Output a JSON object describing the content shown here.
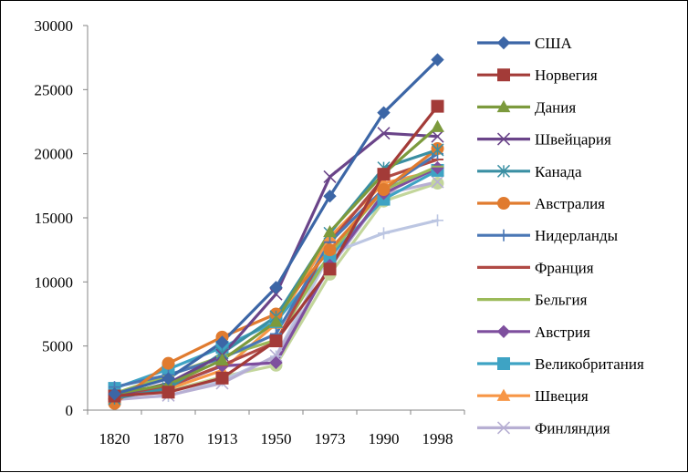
{
  "chart_data": {
    "type": "line",
    "categories": [
      "1820",
      "1870",
      "1913",
      "1950",
      "1973",
      "1990",
      "1998"
    ],
    "ylim": [
      0,
      30000
    ],
    "yticks": [
      0,
      5000,
      10000,
      15000,
      20000,
      25000,
      30000
    ],
    "grid": false,
    "legend": "right",
    "series": [
      {
        "name": "США",
        "color": "#3C66A6",
        "marker": "diamond",
        "values": [
          1260,
          2450,
          5300,
          9570,
          16690,
          23200,
          27330
        ]
      },
      {
        "name": "Норвегия",
        "color": "#A33B38",
        "marker": "square",
        "values": [
          1100,
          1400,
          2500,
          5400,
          11000,
          18400,
          23700
        ]
      },
      {
        "name": "Дания",
        "color": "#7C9A3D",
        "marker": "triangle",
        "values": [
          1270,
          2000,
          3900,
          6900,
          13900,
          18450,
          22100
        ]
      },
      {
        "name": "Швейцария",
        "color": "#6A4489",
        "marker": "x",
        "values": [
          1100,
          2100,
          4300,
          9050,
          18200,
          21600,
          21350
        ]
      },
      {
        "name": "Канада",
        "color": "#3A8FA3",
        "marker": "star",
        "values": [
          900,
          1700,
          4450,
          7300,
          13800,
          18900,
          20300
        ]
      },
      {
        "name": "Австралия",
        "color": "#E07B2F",
        "marker": "circle",
        "values": [
          520,
          3650,
          5700,
          7500,
          12500,
          17200,
          20400
        ]
      },
      {
        "name": "Нидерланды",
        "color": "#4A77B5",
        "marker": "plus",
        "values": [
          1800,
          2750,
          4050,
          5950,
          13100,
          17250,
          20000
        ]
      },
      {
        "name": "Франция",
        "color": "#B04A45",
        "marker": "dash",
        "values": [
          1150,
          1850,
          3500,
          5300,
          13100,
          18100,
          19550
        ]
      },
      {
        "name": "Бельгия",
        "color": "#9BBA59",
        "marker": "dash",
        "values": [
          1300,
          2700,
          4200,
          5450,
          12200,
          17200,
          19000
        ]
      },
      {
        "name": "Австрия",
        "color": "#7E4F9E",
        "marker": "diamond",
        "values": [
          1200,
          1850,
          3450,
          3700,
          11300,
          16900,
          18900
        ]
      },
      {
        "name": "Великобритания",
        "color": "#3EA3C4",
        "marker": "square",
        "values": [
          1700,
          3200,
          4900,
          6900,
          12000,
          16450,
          18700
        ]
      },
      {
        "name": "Швеция",
        "color": "#F79646",
        "marker": "triangle",
        "values": [
          1200,
          1650,
          3100,
          6750,
          13500,
          17700,
          18700
        ]
      },
      {
        "name": "Финляндия",
        "color": "#B7AFD3",
        "marker": "x",
        "values": [
          800,
          1150,
          2100,
          4250,
          11100,
          16850,
          17800
        ]
      },
      {
        "name": "",
        "color": "#BCC6E2",
        "marker": "plus",
        "values": [
          900,
          1100,
          2300,
          4200,
          12200,
          13800,
          14800
        ]
      },
      {
        "name": "",
        "color": "#C3D69B",
        "marker": "circle",
        "values": [
          1100,
          1500,
          2600,
          3500,
          10600,
          16300,
          17700
        ]
      }
    ]
  }
}
